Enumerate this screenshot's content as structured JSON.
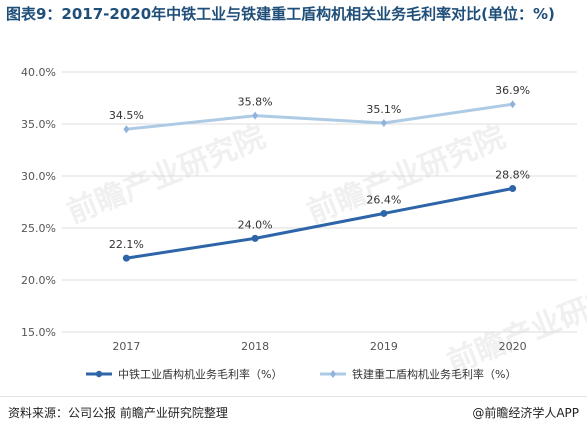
{
  "title": "图表9：2017-2020年中铁工业与铁建重工盾构机相关业务毛利率对比(单位：%)",
  "source": "资料来源：公司公报  前瞻产业研究院整理",
  "brand": "@前瞻经济学人APP",
  "watermark": "前瞻产业研究院",
  "colors": {
    "crcc": "#aecbe6",
    "crhi": "#2e65a8",
    "grid": "#dcdcdc"
  },
  "chart_data": {
    "type": "line",
    "x": [
      "2017",
      "2018",
      "2019",
      "2020"
    ],
    "ylim": [
      15,
      40
    ],
    "yticks": [
      15,
      20,
      25,
      30,
      35,
      40
    ],
    "ytick_labels": [
      "15.0%",
      "20.0%",
      "25.0%",
      "30.0%",
      "35.0%",
      "40.0%"
    ],
    "grid": "horizontal",
    "legend": "bottom",
    "series": [
      {
        "name": "中铁工业盾构机业务毛利率（%）",
        "values": [
          22.1,
          24.0,
          26.4,
          28.8
        ],
        "labels": [
          "22.1%",
          "24.0%",
          "26.4%",
          "28.8%"
        ],
        "color": "#2e65a8"
      },
      {
        "name": "铁建重工盾构机业务毛利率（%）",
        "values": [
          34.5,
          35.8,
          35.1,
          36.9
        ],
        "labels": [
          "34.5%",
          "35.8%",
          "35.1%",
          "36.9%"
        ],
        "color": "#aecbe6"
      }
    ]
  }
}
